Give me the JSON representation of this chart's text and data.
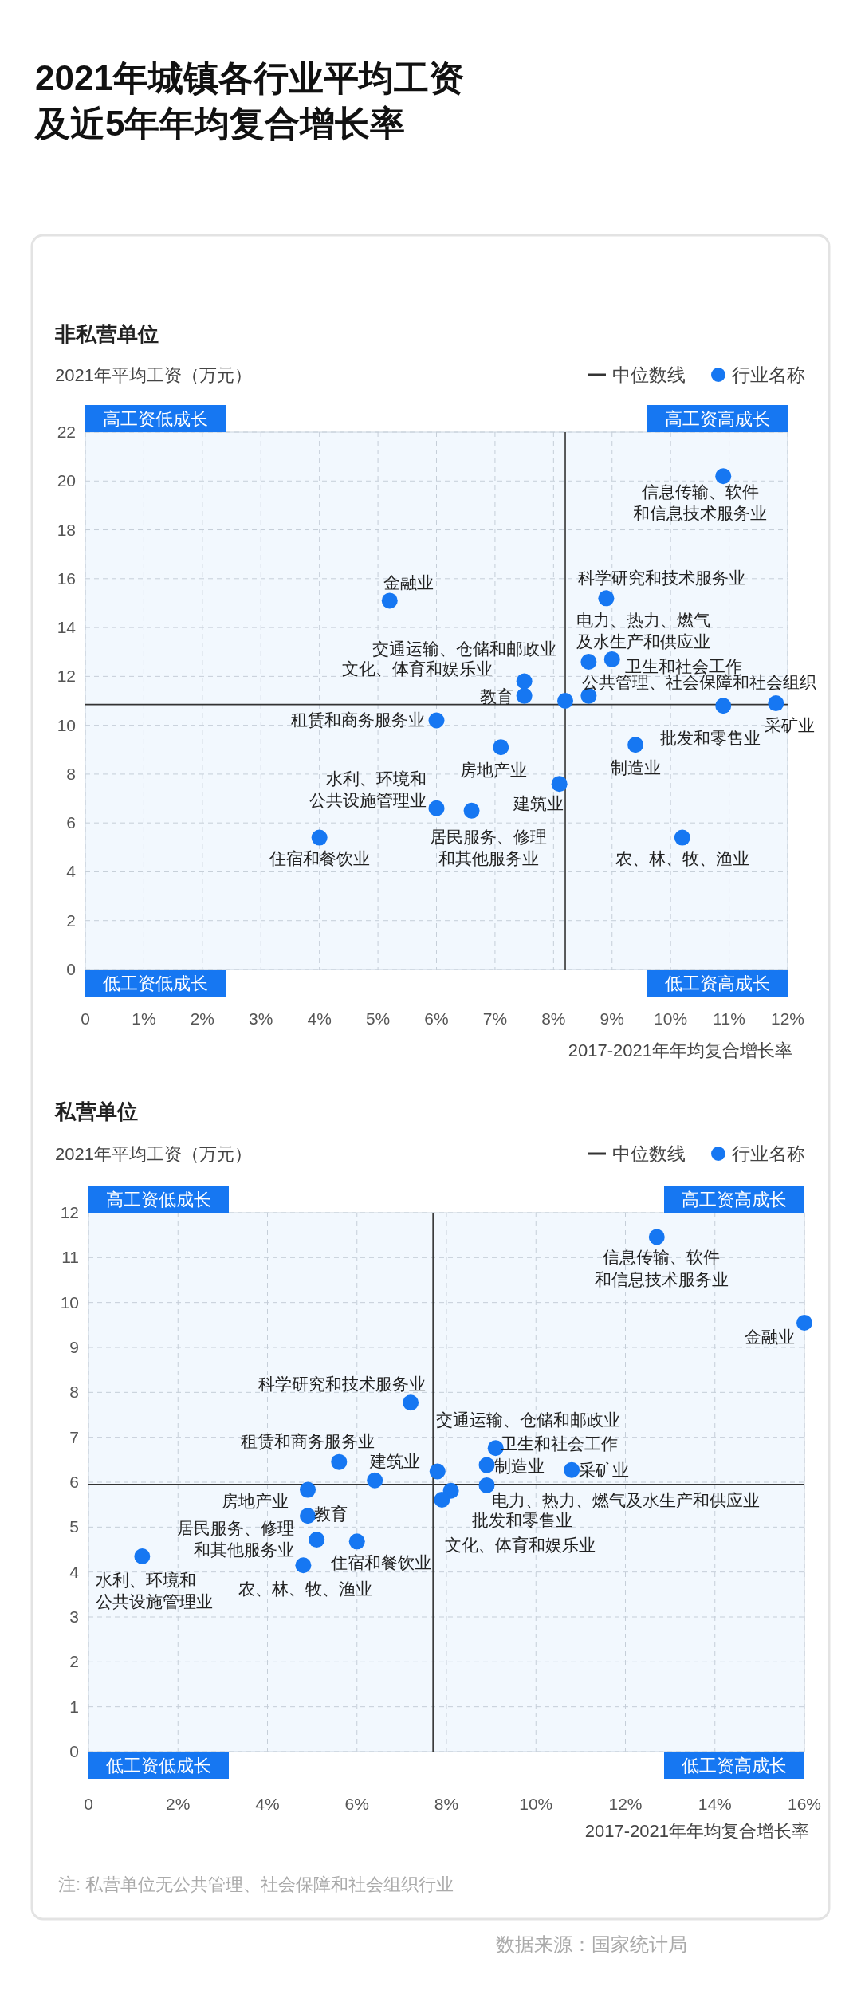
{
  "chart_data": [
    {
      "type": "scatter",
      "title": "2021年城镇各行业平均工资及近5年年均复合增长率",
      "subtitle": "非私营单位",
      "ylabel": "2021年平均工资（万元）",
      "xlabel": "2017-2021年年均复合增长率",
      "xlim": [
        0,
        12
      ],
      "ylim": [
        0,
        22
      ],
      "xticks": [
        0,
        {
          "value": 1,
          "label": "1%"
        },
        {
          "value": 2,
          "label": "2%"
        },
        {
          "value": 3,
          "label": "3%"
        },
        {
          "value": 4,
          "label": "4%"
        },
        {
          "value": 5,
          "label": "5%"
        },
        {
          "value": 6,
          "label": "6%"
        },
        {
          "value": 7,
          "label": "7%"
        },
        {
          "value": 8,
          "label": "8%"
        },
        {
          "value": 9,
          "label": "9%"
        },
        {
          "value": 10,
          "label": "10%"
        },
        {
          "value": 11,
          "label": "11%"
        },
        {
          "value": 12,
          "label": "12%"
        }
      ],
      "yticks": [
        0,
        2,
        4,
        6,
        8,
        10,
        12,
        14,
        16,
        18,
        20,
        22
      ],
      "grid": true,
      "legend": "top right",
      "marker": "circle",
      "ref_lines": [
        {
          "axis": "x",
          "value": 8.2,
          "label": "中位数线",
          "color": "#333333"
        },
        {
          "axis": "y",
          "value": 10.85,
          "color": "#333333"
        }
      ],
      "series": [
        {
          "name": "行业名称",
          "color": "#1677f2",
          "x": [
            10.9,
            5.2,
            8.9,
            8.6,
            9.0,
            7.5,
            7.5,
            8.2,
            8.6,
            10.9,
            11.8,
            6.0,
            7.1,
            9.4,
            8.1,
            6.0,
            6.6,
            4.0,
            10.2
          ],
          "values": [
            20.2,
            15.1,
            15.2,
            12.6,
            12.7,
            11.8,
            11.2,
            11.0,
            11.2,
            10.8,
            10.9,
            10.2,
            9.1,
            9.2,
            7.6,
            6.6,
            6.5,
            5.4,
            5.4
          ]
        }
      ],
      "annotations": [
        "高工资低成长",
        "高工资高成长",
        "低工资低成长",
        "低工资高成长",
        {
          "text": "信息传输、软件和信息技术服务业",
          "x": 10.9,
          "y": 20.2
        },
        {
          "text": "金融业",
          "x": 5.2,
          "y": 15.1
        },
        {
          "text": "科学研究和技术服务业",
          "x": 8.9,
          "y": 15.2
        },
        {
          "text": "电力、热力、燃气及水生产和供应业",
          "x": 8.6,
          "y": 12.6
        },
        {
          "text": "卫生和社会工作",
          "x": 9.0,
          "y": 12.7
        },
        {
          "text": "文化、体育和娱乐业",
          "x": 7.5,
          "y": 11.8
        },
        {
          "text": "教育",
          "x": 7.5,
          "y": 11.2
        },
        {
          "text": "交通运输、仓储和邮政业",
          "x": 8.2,
          "y": 11.0
        },
        {
          "text": "公共管理、社会保障和社会组织",
          "x": 8.6,
          "y": 11.2
        },
        {
          "text": "批发和零售业",
          "x": 10.9,
          "y": 10.8
        },
        {
          "text": "采矿业",
          "x": 11.8,
          "y": 10.9
        },
        {
          "text": "租赁和商务服务业",
          "x": 6.0,
          "y": 10.2
        },
        {
          "text": "房地产业",
          "x": 7.1,
          "y": 9.1
        },
        {
          "text": "制造业",
          "x": 9.4,
          "y": 9.2
        },
        {
          "text": "建筑业",
          "x": 8.1,
          "y": 7.6
        },
        {
          "text": "水利、环境和公共设施管理业",
          "x": 6.0,
          "y": 6.6
        },
        {
          "text": "居民服务、修理和其他服务业",
          "x": 6.6,
          "y": 6.5
        },
        {
          "text": "住宿和餐饮业",
          "x": 4.0,
          "y": 5.4
        },
        {
          "text": "农、林、牧、渔业",
          "x": 10.2,
          "y": 5.4
        }
      ]
    },
    {
      "type": "scatter",
      "title": "私营单位",
      "ylabel": "2021年平均工资（万元）",
      "xlabel": "2017-2021年年均复合增长率",
      "xlim": [
        0,
        16
      ],
      "ylim": [
        0,
        12
      ],
      "xticks": [
        0,
        {
          "value": 2,
          "label": "2%"
        },
        {
          "value": 4,
          "label": "4%"
        },
        {
          "value": 6,
          "label": "6%"
        },
        {
          "value": 8,
          "label": "8%"
        },
        {
          "value": 10,
          "label": "10%"
        },
        {
          "value": 12,
          "label": "12%"
        },
        {
          "value": 14,
          "label": "14%"
        },
        {
          "value": 16,
          "label": "16%"
        }
      ],
      "yticks": [
        0,
        1,
        2,
        3,
        4,
        5,
        6,
        7,
        8,
        9,
        10,
        11,
        12
      ],
      "grid": true,
      "legend": "top right",
      "marker": "circle",
      "ref_lines": [
        {
          "axis": "x",
          "value": 7.7,
          "label": "中位数线",
          "color": "#333333"
        },
        {
          "axis": "y",
          "value": 5.95,
          "color": "#333333"
        }
      ],
      "series": [
        {
          "name": "行业名称",
          "color": "#1677f2",
          "x": [
            12.7,
            16.0,
            7.2,
            7.8,
            9.1,
            8.9,
            10.8,
            5.6,
            6.4,
            8.9,
            4.9,
            8.1,
            7.9,
            4.9,
            5.1,
            6.0,
            1.2,
            4.8
          ],
          "values": [
            11.46,
            9.55,
            7.77,
            6.24,
            6.76,
            6.38,
            6.27,
            6.45,
            6.04,
            5.93,
            5.83,
            5.81,
            5.61,
            5.25,
            4.72,
            4.68,
            4.35,
            4.15
          ]
        }
      ],
      "annotations": [
        "高工资低成长",
        "高工资高成长",
        "低工资低成长",
        "低工资高成长",
        "注: 私营单位无公共管理、社会保障和社会组织行业",
        "数据来源：国家统计局",
        {
          "text": "信息传输、软件和信息技术服务业",
          "x": 12.7,
          "y": 11.46
        },
        {
          "text": "金融业",
          "x": 16.0,
          "y": 9.55
        },
        {
          "text": "科学研究和技术服务业",
          "x": 7.2,
          "y": 7.77
        },
        {
          "text": "交通运输、仓储和邮政业",
          "x": 7.8,
          "y": 6.24
        },
        {
          "text": "卫生和社会工作",
          "x": 9.1,
          "y": 6.76
        },
        {
          "text": "制造业",
          "x": 8.9,
          "y": 6.38
        },
        {
          "text": "采矿业",
          "x": 10.8,
          "y": 6.27
        },
        {
          "text": "租赁和商务服务业",
          "x": 5.6,
          "y": 6.45
        },
        {
          "text": "建筑业",
          "x": 6.4,
          "y": 6.04
        },
        {
          "text": "电力、热力、燃气及水生产和供应业",
          "x": 8.9,
          "y": 5.93
        },
        {
          "text": "房地产业",
          "x": 4.9,
          "y": 5.83
        },
        {
          "text": "批发和零售业",
          "x": 8.1,
          "y": 5.81
        },
        {
          "text": "文化、体育和娱乐业",
          "x": 7.9,
          "y": 5.61
        },
        {
          "text": "教育",
          "x": 4.9,
          "y": 5.25
        },
        {
          "text": "居民服务、修理和其他服务业",
          "x": 5.1,
          "y": 4.72
        },
        {
          "text": "住宿和餐饮业",
          "x": 6.0,
          "y": 4.68
        },
        {
          "text": "水利、环境和公共设施管理业",
          "x": 1.2,
          "y": 4.35
        },
        {
          "text": "农、林、牧、渔业",
          "x": 4.8,
          "y": 4.15
        }
      ]
    }
  ]
}
